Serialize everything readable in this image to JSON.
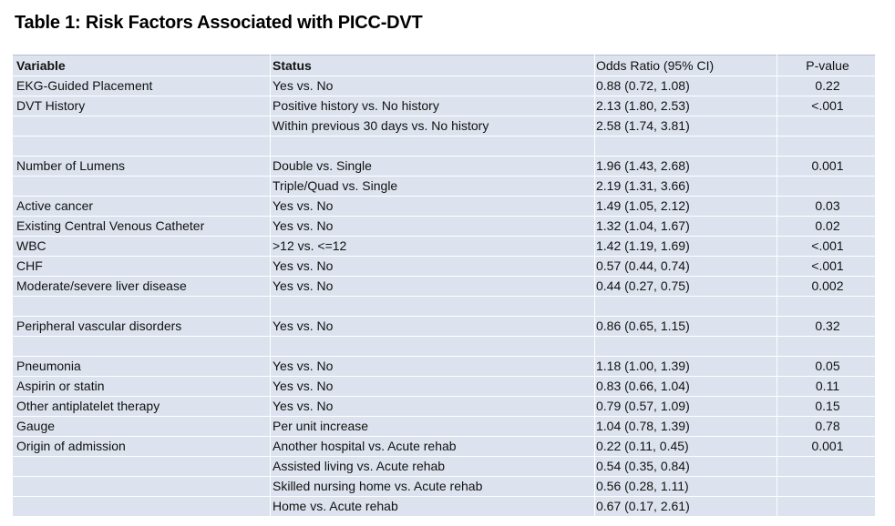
{
  "title": "Table 1: Risk Factors Associated with PICC-DVT",
  "columns": [
    "Variable",
    "Status",
    "Odds Ratio (95% CI)",
    "P-value"
  ],
  "rows": [
    {
      "variable": "EKG-Guided Placement",
      "status": "Yes vs. No",
      "or": "0.88 (0.72, 1.08)",
      "p": "0.22"
    },
    {
      "variable": "DVT History",
      "status": "Positive history vs. No history",
      "or": "2.13 (1.80, 2.53)",
      "p": "<.001"
    },
    {
      "variable": "",
      "status": "Within previous 30 days vs. No history",
      "or": "2.58 (1.74, 3.81)",
      "p": ""
    },
    {
      "variable": "",
      "status": "",
      "or": "",
      "p": ""
    },
    {
      "variable": "Number of Lumens",
      "status": "Double vs. Single",
      "or": "1.96 (1.43, 2.68)",
      "p": "0.001"
    },
    {
      "variable": "",
      "status": "Triple/Quad vs. Single",
      "or": "2.19 (1.31, 3.66)",
      "p": ""
    },
    {
      "variable": "Active cancer",
      "status": "Yes vs. No",
      "or": "1.49 (1.05, 2.12)",
      "p": "0.03"
    },
    {
      "variable": "Existing Central Venous Catheter",
      "status": "Yes vs. No",
      "or": "1.32 (1.04, 1.67)",
      "p": "0.02"
    },
    {
      "variable": "WBC",
      "status": ">12 vs. <=12",
      "or": "1.42 (1.19, 1.69)",
      "p": "<.001"
    },
    {
      "variable": "CHF",
      "status": "Yes vs. No",
      "or": "0.57 (0.44, 0.74)",
      "p": "<.001"
    },
    {
      "variable": "Moderate/severe liver disease",
      "status": "Yes vs. No",
      "or": "0.44 (0.27, 0.75)",
      "p": "0.002"
    },
    {
      "variable": "",
      "status": "",
      "or": "",
      "p": ""
    },
    {
      "variable": "Peripheral vascular disorders",
      "status": "Yes vs. No",
      "or": "0.86 (0.65, 1.15)",
      "p": "0.32"
    },
    {
      "variable": "",
      "status": "",
      "or": "",
      "p": ""
    },
    {
      "variable": "Pneumonia",
      "status": "Yes vs. No",
      "or": "1.18 (1.00, 1.39)",
      "p": "0.05"
    },
    {
      "variable": "Aspirin or statin",
      "status": "Yes vs. No",
      "or": "0.83 (0.66, 1.04)",
      "p": "0.11"
    },
    {
      "variable": "Other antiplatelet therapy",
      "status": "Yes vs. No",
      "or": "0.79 (0.57, 1.09)",
      "p": "0.15"
    },
    {
      "variable": "Gauge",
      "status": "Per unit increase",
      "or": "1.04 (0.78, 1.39)",
      "p": "0.78"
    },
    {
      "variable": "Origin of admission",
      "status": "Another hospital vs. Acute rehab",
      "or": "0.22 (0.11, 0.45)",
      "p": "0.001"
    },
    {
      "variable": "",
      "status": "Assisted living vs. Acute rehab",
      "or": "0.54 (0.35, 0.84)",
      "p": ""
    },
    {
      "variable": "",
      "status": "Skilled nursing home vs. Acute rehab",
      "or": "0.56 (0.28, 1.11)",
      "p": ""
    },
    {
      "variable": "",
      "status": "Home vs. Acute rehab",
      "or": "0.67 (0.17, 2.61)",
      "p": ""
    }
  ]
}
